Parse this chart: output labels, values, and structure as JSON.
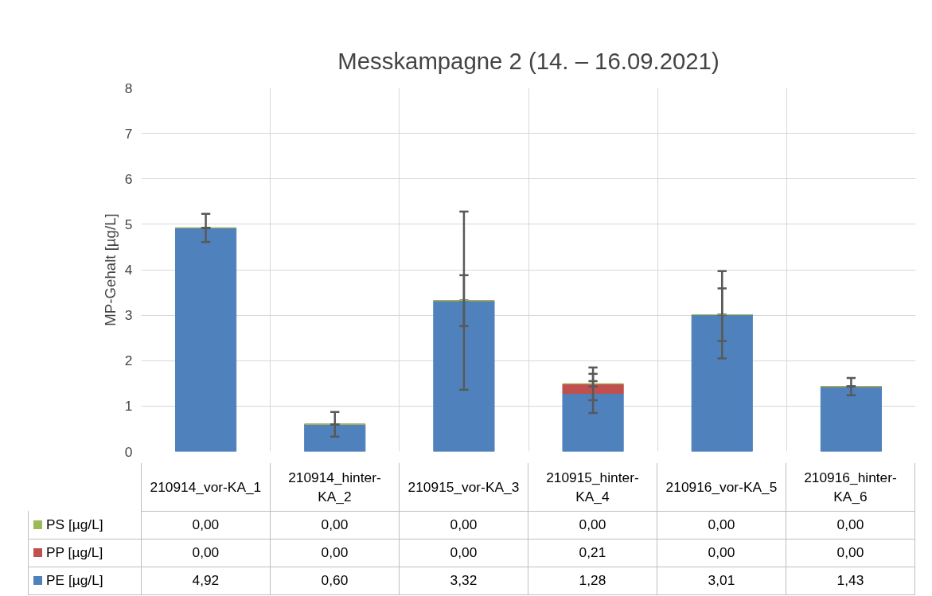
{
  "chart_data": {
    "type": "bar",
    "stacked": true,
    "title": "Messkampagne 2 (14. – 16.09.2021)",
    "ylabel": "MP-Gehalt [µg/L]",
    "categories": [
      "210914_vor-KA_1",
      "210914_hinter-KA_2",
      "210915_vor-KA_3",
      "210915_hinter-KA_4",
      "210916_vor-KA_5",
      "210916_hinter-KA_6"
    ],
    "series": [
      {
        "name": "PE [µg/L]",
        "color": "#4f81bd",
        "values": [
          4.92,
          0.6,
          3.32,
          1.28,
          3.01,
          1.43
        ],
        "value_labels": [
          "4,92",
          "0,60",
          "3,32",
          "1,28",
          "3,01",
          "1,43"
        ],
        "errors": [
          0.31,
          0.27,
          1.96,
          0.43,
          0.96,
          0.19
        ]
      },
      {
        "name": "PP [µg/L]",
        "color": "#c0504d",
        "values": [
          0,
          0,
          0,
          0.21,
          0,
          0
        ],
        "value_labels": [
          "0,00",
          "0,00",
          "0,00",
          "0,21",
          "0,00",
          "0,00"
        ],
        "errors": [
          0,
          0,
          0,
          0.36,
          0,
          0
        ]
      },
      {
        "name": "PS [µg/L]",
        "color": "#9bbb59",
        "values": [
          0,
          0,
          0,
          0,
          0,
          0
        ],
        "value_labels": [
          "0,00",
          "0,00",
          "0,00",
          "0,00",
          "0,00",
          "0,00"
        ],
        "errors": [
          0,
          0,
          0.56,
          0.06,
          0.58,
          0
        ]
      }
    ],
    "ylim": [
      0,
      8
    ],
    "yticks": [
      0,
      1,
      2,
      3,
      4,
      5,
      6,
      7,
      8
    ],
    "grid": true,
    "legend": "bottom"
  }
}
